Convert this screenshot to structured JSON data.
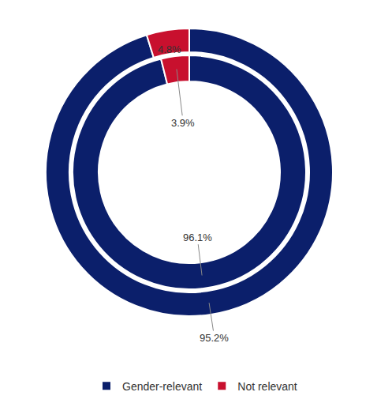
{
  "chart_data": {
    "type": "pie",
    "categories": [
      "Gender-relevant",
      "Not relevant"
    ],
    "colors": [
      "#0b1f6b",
      "#c8102e"
    ],
    "series": [
      {
        "values": [
          95.2,
          4.8
        ],
        "value_labels": [
          "95.2%",
          "4.8%"
        ]
      },
      {
        "values": [
          96.1,
          3.9
        ],
        "value_labels": [
          "96.1%",
          "3.9%"
        ]
      }
    ],
    "data_labels": true,
    "legend": "bottom"
  }
}
